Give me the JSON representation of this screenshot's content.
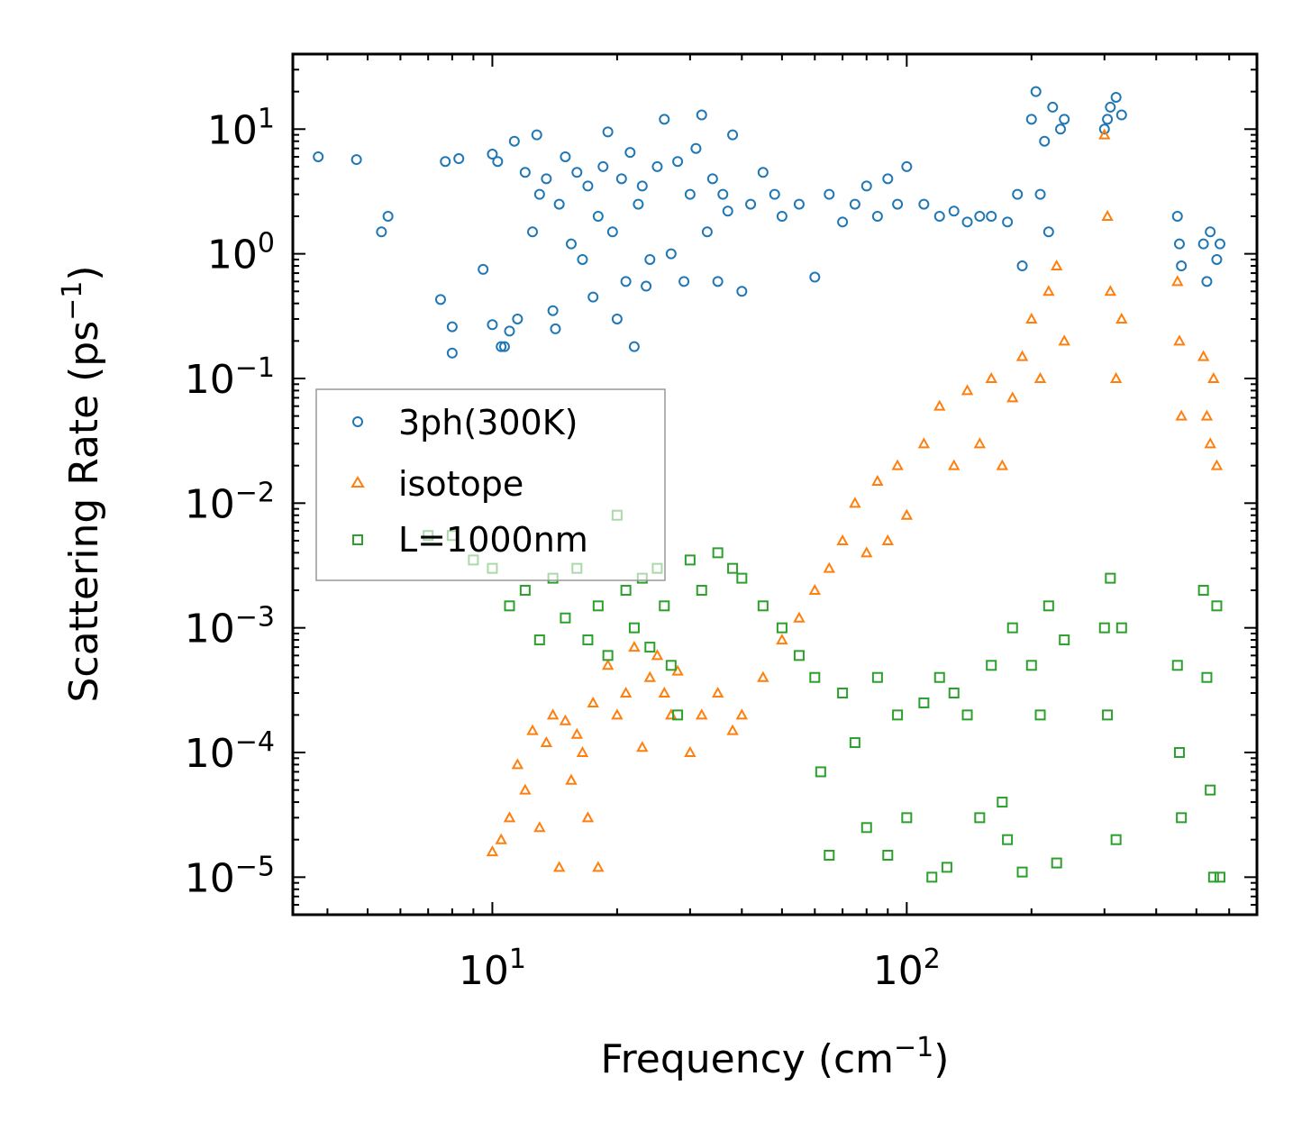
{
  "chart_data": {
    "type": "scatter",
    "xscale": "log",
    "yscale": "log",
    "xlim": [
      3.3,
      700
    ],
    "ylim": [
      5e-06,
      40
    ],
    "xlabel": {
      "prefix": "Frequency (cm",
      "sup": "−1",
      "suffix": ")"
    },
    "ylabel": {
      "prefix": "Scattering Rate (ps",
      "sup": "−1",
      "suffix": ")"
    },
    "x_ticks": [
      {
        "value": 10,
        "base": "10",
        "exp": "1"
      },
      {
        "value": 100,
        "base": "10",
        "exp": "2"
      }
    ],
    "y_ticks": [
      {
        "value": 10,
        "base": "10",
        "exp": "1"
      },
      {
        "value": 1,
        "base": "10",
        "exp": "0"
      },
      {
        "value": 0.1,
        "base": "10",
        "exp": "−1"
      },
      {
        "value": 0.01,
        "base": "10",
        "exp": "−2"
      },
      {
        "value": 0.001,
        "base": "10",
        "exp": "−3"
      },
      {
        "value": 0.0001,
        "base": "10",
        "exp": "−4"
      },
      {
        "value": 1e-05,
        "base": "10",
        "exp": "−5"
      }
    ],
    "legend_position": "center-left",
    "series": [
      {
        "name": "3ph(300K)",
        "marker": "circle",
        "color": "#1f77b4",
        "points": [
          [
            3.8,
            6.0
          ],
          [
            4.7,
            5.7
          ],
          [
            5.4,
            1.5
          ],
          [
            5.6,
            2.0
          ],
          [
            7.5,
            0.43
          ],
          [
            7.7,
            5.5
          ],
          [
            8.0,
            0.26
          ],
          [
            8.0,
            0.16
          ],
          [
            8.3,
            5.8
          ],
          [
            9.5,
            0.75
          ],
          [
            10.0,
            6.3
          ],
          [
            10.0,
            0.27
          ],
          [
            10.3,
            5.5
          ],
          [
            10.5,
            0.18
          ],
          [
            10.7,
            0.18
          ],
          [
            11.0,
            0.24
          ],
          [
            11.3,
            8.0
          ],
          [
            11.5,
            0.3
          ],
          [
            12.0,
            4.5
          ],
          [
            12.5,
            1.5
          ],
          [
            12.8,
            9.0
          ],
          [
            13.0,
            3.0
          ],
          [
            13.5,
            4.0
          ],
          [
            14.0,
            0.35
          ],
          [
            14.2,
            0.25
          ],
          [
            14.5,
            2.5
          ],
          [
            15.0,
            6.0
          ],
          [
            15.5,
            1.2
          ],
          [
            16.0,
            4.5
          ],
          [
            16.5,
            0.9
          ],
          [
            17.0,
            3.5
          ],
          [
            17.5,
            0.45
          ],
          [
            18.0,
            2.0
          ],
          [
            18.5,
            5.0
          ],
          [
            19.0,
            9.5
          ],
          [
            19.5,
            1.5
          ],
          [
            20.0,
            0.3
          ],
          [
            20.5,
            4.0
          ],
          [
            21.0,
            0.6
          ],
          [
            21.5,
            6.5
          ],
          [
            22.0,
            0.18
          ],
          [
            22.5,
            2.5
          ],
          [
            23.0,
            3.5
          ],
          [
            23.5,
            0.55
          ],
          [
            24.0,
            0.9
          ],
          [
            25.0,
            5.0
          ],
          [
            26.0,
            12.0
          ],
          [
            27.0,
            1.0
          ],
          [
            28.0,
            5.5
          ],
          [
            29.0,
            0.6
          ],
          [
            30.0,
            3.0
          ],
          [
            31.0,
            7.0
          ],
          [
            32.0,
            13.0
          ],
          [
            33.0,
            1.5
          ],
          [
            34.0,
            4.0
          ],
          [
            35.0,
            0.6
          ],
          [
            36.0,
            3.0
          ],
          [
            37.0,
            2.2
          ],
          [
            38.0,
            9.0
          ],
          [
            40.0,
            0.5
          ],
          [
            42.0,
            2.5
          ],
          [
            45.0,
            4.5
          ],
          [
            48.0,
            3.0
          ],
          [
            50.0,
            2.0
          ],
          [
            55.0,
            2.5
          ],
          [
            60.0,
            0.65
          ],
          [
            65.0,
            3.0
          ],
          [
            70.0,
            1.8
          ],
          [
            75.0,
            2.5
          ],
          [
            80.0,
            3.5
          ],
          [
            85.0,
            2.0
          ],
          [
            90.0,
            4.0
          ],
          [
            95.0,
            2.5
          ],
          [
            100.0,
            5.0
          ],
          [
            110.0,
            2.5
          ],
          [
            120.0,
            2.0
          ],
          [
            130.0,
            2.2
          ],
          [
            140.0,
            1.8
          ],
          [
            150.0,
            2.0
          ],
          [
            160.0,
            2.0
          ],
          [
            175.0,
            1.8
          ],
          [
            185.0,
            3.0
          ],
          [
            190.0,
            0.8
          ],
          [
            200.0,
            12.0
          ],
          [
            205.0,
            20.0
          ],
          [
            210.0,
            3.0
          ],
          [
            215.0,
            8.0
          ],
          [
            220.0,
            1.5
          ],
          [
            225.0,
            15.0
          ],
          [
            235.0,
            10.0
          ],
          [
            240.0,
            12.0
          ],
          [
            300.0,
            10.0
          ],
          [
            305.0,
            12.0
          ],
          [
            310.0,
            15.0
          ],
          [
            320.0,
            18.0
          ],
          [
            330.0,
            13.0
          ],
          [
            450.0,
            2.0
          ],
          [
            455.0,
            1.2
          ],
          [
            460.0,
            0.8
          ],
          [
            520.0,
            1.2
          ],
          [
            530.0,
            0.6
          ],
          [
            540.0,
            1.5
          ],
          [
            560.0,
            0.9
          ],
          [
            570.0,
            1.2
          ]
        ]
      },
      {
        "name": "isotope",
        "marker": "triangle",
        "color": "#ff7f0e",
        "points": [
          [
            10.0,
            1.6e-05
          ],
          [
            10.5,
            2e-05
          ],
          [
            11.0,
            3e-05
          ],
          [
            11.5,
            8e-05
          ],
          [
            12.0,
            5e-05
          ],
          [
            12.5,
            0.00015
          ],
          [
            13.0,
            2.5e-05
          ],
          [
            13.5,
            0.00012
          ],
          [
            14.0,
            0.0002
          ],
          [
            14.5,
            1.2e-05
          ],
          [
            15.0,
            0.00018
          ],
          [
            15.5,
            6e-05
          ],
          [
            16.0,
            0.00014
          ],
          [
            16.5,
            0.0001
          ],
          [
            17.0,
            3e-05
          ],
          [
            17.5,
            0.00025
          ],
          [
            18.0,
            1.2e-05
          ],
          [
            19.0,
            0.0005
          ],
          [
            20.0,
            0.0002
          ],
          [
            21.0,
            0.0003
          ],
          [
            22.0,
            0.0007
          ],
          [
            23.0,
            0.00011
          ],
          [
            24.0,
            0.0004
          ],
          [
            25.0,
            0.0006
          ],
          [
            26.0,
            0.0003
          ],
          [
            27.0,
            0.0002
          ],
          [
            28.0,
            0.00045
          ],
          [
            30.0,
            0.0001
          ],
          [
            32.0,
            0.0002
          ],
          [
            35.0,
            0.0003
          ],
          [
            38.0,
            0.00015
          ],
          [
            40.0,
            0.0002
          ],
          [
            45.0,
            0.0004
          ],
          [
            50.0,
            0.0008
          ],
          [
            55.0,
            0.0012
          ],
          [
            60.0,
            0.002
          ],
          [
            65.0,
            0.003
          ],
          [
            70.0,
            0.005
          ],
          [
            75.0,
            0.01
          ],
          [
            80.0,
            0.004
          ],
          [
            85.0,
            0.015
          ],
          [
            90.0,
            0.005
          ],
          [
            95.0,
            0.02
          ],
          [
            100.0,
            0.008
          ],
          [
            110.0,
            0.03
          ],
          [
            120.0,
            0.06
          ],
          [
            130.0,
            0.02
          ],
          [
            140.0,
            0.08
          ],
          [
            150.0,
            0.03
          ],
          [
            160.0,
            0.1
          ],
          [
            170.0,
            0.02
          ],
          [
            180.0,
            0.07
          ],
          [
            190.0,
            0.15
          ],
          [
            200.0,
            0.3
          ],
          [
            210.0,
            0.1
          ],
          [
            220.0,
            0.5
          ],
          [
            230.0,
            0.8
          ],
          [
            240.0,
            0.2
          ],
          [
            300.0,
            9.0
          ],
          [
            305.0,
            2.0
          ],
          [
            310.0,
            0.5
          ],
          [
            320.0,
            0.1
          ],
          [
            330.0,
            0.3
          ],
          [
            450.0,
            0.6
          ],
          [
            455.0,
            0.2
          ],
          [
            460.0,
            0.05
          ],
          [
            520.0,
            0.15
          ],
          [
            530.0,
            0.05
          ],
          [
            540.0,
            0.03
          ],
          [
            550.0,
            0.1
          ],
          [
            560.0,
            0.02
          ]
        ]
      },
      {
        "name": "L=1000nm",
        "marker": "square",
        "color": "#2ca02c",
        "points": [
          [
            7.0,
            0.0055
          ],
          [
            8.0,
            0.0055
          ],
          [
            9.0,
            0.0035
          ],
          [
            10.0,
            0.003
          ],
          [
            11.0,
            0.0015
          ],
          [
            12.0,
            0.002
          ],
          [
            13.0,
            0.0008
          ],
          [
            14.0,
            0.0025
          ],
          [
            15.0,
            0.0012
          ],
          [
            16.0,
            0.003
          ],
          [
            17.0,
            0.0008
          ],
          [
            18.0,
            0.0015
          ],
          [
            19.0,
            0.0006
          ],
          [
            20.0,
            0.008
          ],
          [
            21.0,
            0.002
          ],
          [
            22.0,
            0.001
          ],
          [
            23.0,
            0.0025
          ],
          [
            24.0,
            0.0007
          ],
          [
            25.0,
            0.003
          ],
          [
            26.0,
            0.0015
          ],
          [
            27.0,
            0.0005
          ],
          [
            28.0,
            0.0002
          ],
          [
            30.0,
            0.0035
          ],
          [
            32.0,
            0.002
          ],
          [
            35.0,
            0.004
          ],
          [
            38.0,
            0.003
          ],
          [
            40.0,
            0.0025
          ],
          [
            45.0,
            0.0015
          ],
          [
            50.0,
            0.001
          ],
          [
            55.0,
            0.0006
          ],
          [
            60.0,
            0.0004
          ],
          [
            62.0,
            7e-05
          ],
          [
            65.0,
            1.5e-05
          ],
          [
            70.0,
            0.0003
          ],
          [
            75.0,
            0.00012
          ],
          [
            80.0,
            2.5e-05
          ],
          [
            85.0,
            0.0004
          ],
          [
            90.0,
            1.5e-05
          ],
          [
            95.0,
            0.0002
          ],
          [
            100.0,
            3e-05
          ],
          [
            110.0,
            0.00025
          ],
          [
            115.0,
            1e-05
          ],
          [
            120.0,
            0.0004
          ],
          [
            125.0,
            1.2e-05
          ],
          [
            130.0,
            0.0003
          ],
          [
            140.0,
            0.0002
          ],
          [
            150.0,
            3e-05
          ],
          [
            160.0,
            0.0005
          ],
          [
            170.0,
            4e-05
          ],
          [
            175.0,
            2e-05
          ],
          [
            180.0,
            0.001
          ],
          [
            190.0,
            1.1e-05
          ],
          [
            200.0,
            0.0005
          ],
          [
            210.0,
            0.0002
          ],
          [
            220.0,
            0.0015
          ],
          [
            230.0,
            1.3e-05
          ],
          [
            240.0,
            0.0008
          ],
          [
            300.0,
            0.001
          ],
          [
            305.0,
            0.0002
          ],
          [
            310.0,
            0.0025
          ],
          [
            320.0,
            2e-05
          ],
          [
            330.0,
            0.001
          ],
          [
            450.0,
            0.0005
          ],
          [
            455.0,
            0.0001
          ],
          [
            460.0,
            3e-05
          ],
          [
            520.0,
            0.002
          ],
          [
            530.0,
            0.0004
          ],
          [
            540.0,
            5e-05
          ],
          [
            550.0,
            1e-05
          ],
          [
            560.0,
            0.0015
          ],
          [
            570.0,
            1e-05
          ]
        ]
      }
    ]
  }
}
